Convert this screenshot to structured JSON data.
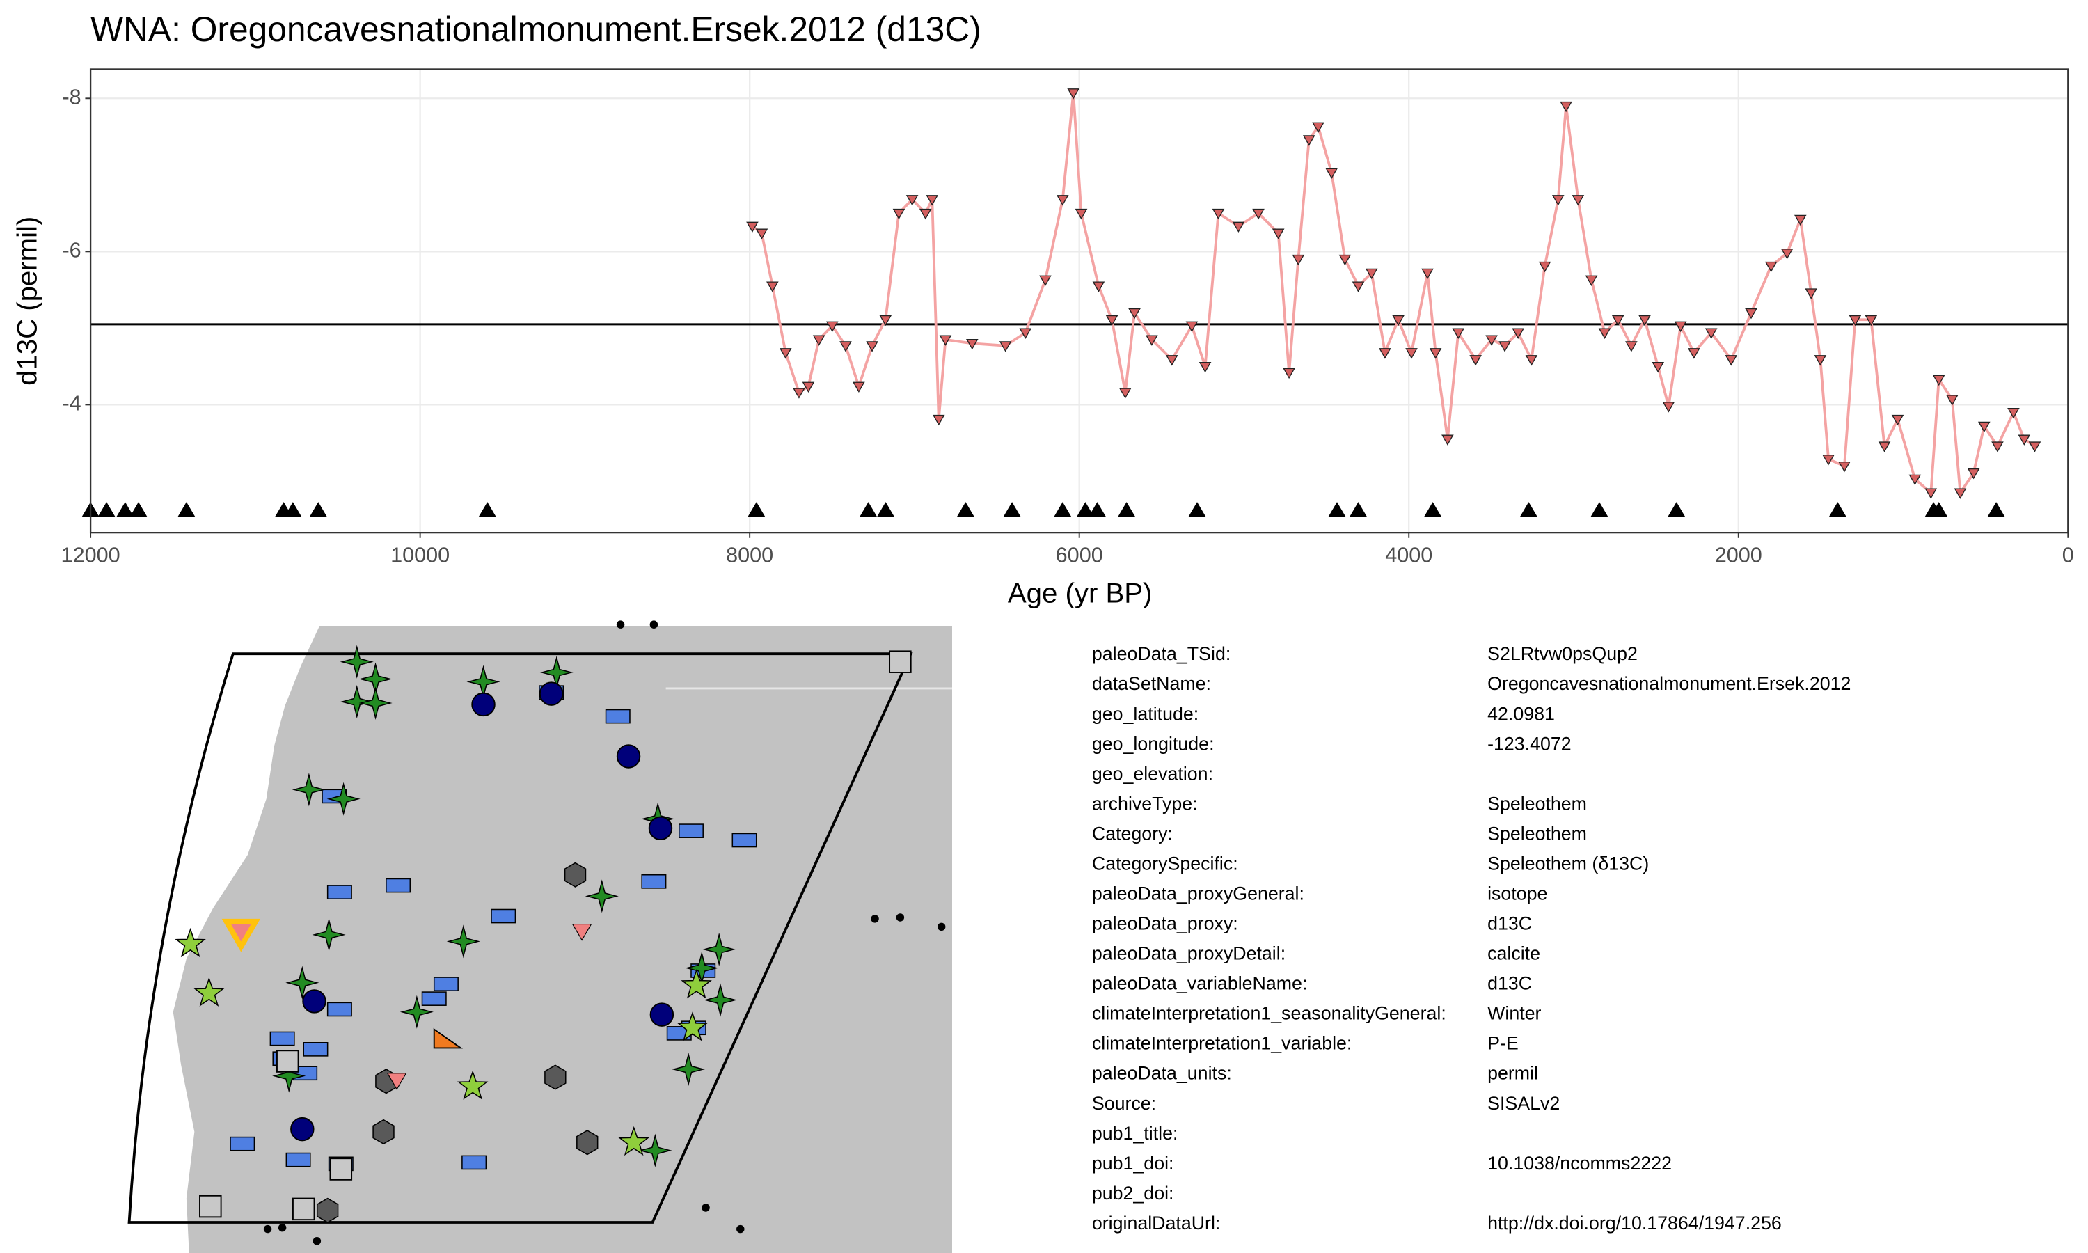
{
  "chart_data": {
    "type": "line",
    "title": "WNA: Oregoncavesnationalmonument.Ersek.2012 (d13C)",
    "xlabel": "Age (yr BP)",
    "ylabel": "d13C (permil)",
    "xlim": [
      12000,
      0
    ],
    "xticks": [
      12000,
      10000,
      8000,
      6000,
      4000,
      2000,
      0
    ],
    "ylim": [
      -2.33,
      -8.38
    ],
    "yticks": [
      -8,
      -6,
      -4
    ],
    "grid": true,
    "hline": -5.05,
    "series": [
      {
        "color": "#d45f5f",
        "line_color": "#f4a3a3",
        "x": [
          7984,
          7927,
          7862,
          7782,
          7701,
          7644,
          7580,
          7499,
          7418,
          7338,
          7257,
          7176,
          7095,
          7014,
          6933,
          6893,
          6853,
          6812,
          6650,
          6448,
          6327,
          6206,
          6101,
          6036,
          5988,
          5883,
          5802,
          5721,
          5665,
          5560,
          5438,
          5317,
          5236,
          5156,
          5034,
          4913,
          4792,
          4727,
          4671,
          4606,
          4550,
          4469,
          4388,
          4307,
          4226,
          4145,
          4064,
          3984,
          3887,
          3838,
          3765,
          3700,
          3595,
          3498,
          3418,
          3337,
          3256,
          3175,
          3094,
          3046,
          2973,
          2892,
          2812,
          2731,
          2650,
          2569,
          2488,
          2424,
          2351,
          2270,
          2165,
          2044,
          1923,
          1802,
          1705,
          1624,
          1559,
          1503,
          1454,
          1357,
          1292,
          1195,
          1114,
          1034,
          929,
          832,
          784,
          703,
          654,
          573,
          509,
          428,
          331,
          266,
          202
        ],
        "values": [
          -6.33,
          -6.24,
          -5.55,
          -4.68,
          -4.16,
          -4.24,
          -4.85,
          -5.03,
          -4.77,
          -4.24,
          -4.77,
          -5.11,
          -6.5,
          -6.68,
          -6.5,
          -6.68,
          -3.81,
          -4.85,
          -4.8,
          -4.77,
          -4.94,
          -5.63,
          -6.68,
          -8.07,
          -6.5,
          -5.55,
          -5.11,
          -4.16,
          -5.2,
          -4.85,
          -4.59,
          -5.03,
          -4.5,
          -6.5,
          -6.33,
          -6.5,
          -6.24,
          -4.42,
          -5.9,
          -7.46,
          -7.63,
          -7.03,
          -5.9,
          -5.55,
          -5.72,
          -4.68,
          -5.11,
          -4.68,
          -5.72,
          -4.68,
          -3.55,
          -4.94,
          -4.59,
          -4.85,
          -4.77,
          -4.94,
          -4.59,
          -5.81,
          -6.68,
          -7.9,
          -6.68,
          -5.63,
          -4.94,
          -5.11,
          -4.77,
          -5.11,
          -4.5,
          -3.98,
          -5.03,
          -4.68,
          -4.94,
          -4.59,
          -5.2,
          -5.81,
          -5.98,
          -6.42,
          -5.46,
          -4.59,
          -3.29,
          -3.2,
          -5.11,
          -5.11,
          -3.46,
          -3.81,
          -3.03,
          -2.85,
          -4.33,
          -4.07,
          -2.85,
          -3.11,
          -3.72,
          -3.46,
          -3.9,
          -3.55,
          -3.46
        ]
      }
    ],
    "chron_ages": [
      12000,
      11903,
      11790,
      11709,
      11418,
      10828,
      10772,
      10618,
      9592,
      7959,
      7280,
      7175,
      6690,
      6408,
      6101,
      5963,
      5891,
      5713,
      5285,
      4436,
      4307,
      3855,
      3273,
      2844,
      2376,
      1398,
      816,
      784,
      436
    ]
  },
  "metadata": {
    "rows": [
      [
        "paleoData_TSid:",
        "S2LRtvw0psQup2"
      ],
      [
        "dataSetName:",
        "Oregoncavesnationalmonument.Ersek.2012"
      ],
      [
        "geo_latitude:",
        "42.0981"
      ],
      [
        "geo_longitude:",
        "-123.4072"
      ],
      [
        "geo_elevation:"
      ],
      [
        "archiveType:",
        "Speleothem"
      ],
      [
        "Category:",
        "Speleothem"
      ],
      [
        "CategorySpecific:",
        "Speleothem (δ13C)"
      ],
      [
        "paleoData_proxyGeneral:",
        "isotope"
      ],
      [
        "paleoData_proxy:",
        "d13C"
      ],
      [
        "paleoData_proxyDetail:",
        "calcite"
      ],
      [
        "paleoData_variableName:",
        "d13C"
      ],
      [
        "climateInterpretation1_seasonalityGeneral:",
        "Winter"
      ],
      [
        "climateInterpretation1_variable:",
        "P-E"
      ],
      [
        "paleoData_units:",
        "permil"
      ],
      [
        "Source:",
        "SISALv2"
      ],
      [
        "pub1_title:"
      ],
      [
        "pub1_doi:",
        "10.1038/ncomms2222"
      ],
      [
        "pub2_doi:"
      ],
      [
        "originalDataUrl:",
        "http://dx.doi.org/10.17864/1947.256"
      ]
    ]
  }
}
